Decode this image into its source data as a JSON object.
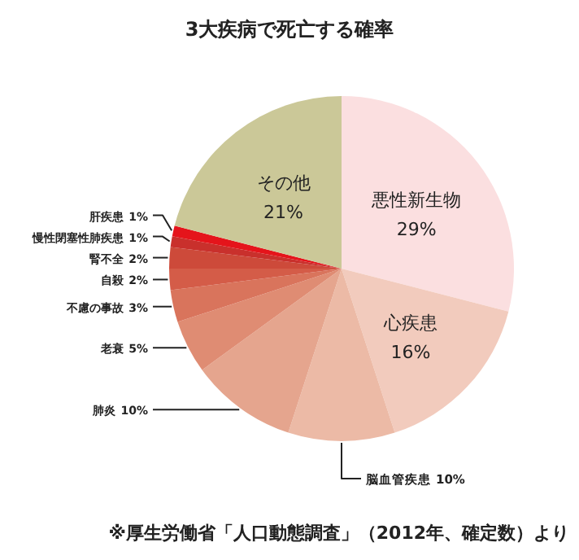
{
  "chart_data": {
    "type": "pie",
    "title": "3大疾病で死亡する確率",
    "categories": [
      "悪性新生物",
      "心疾患",
      "脳血管疾患",
      "肺炎",
      "老衰",
      "不慮の事故",
      "自殺",
      "腎不全",
      "慢性閉塞性肺疾患",
      "肝疾患",
      "その他"
    ],
    "values": [
      29,
      16,
      10,
      10,
      5,
      3,
      2,
      2,
      1,
      1,
      21
    ],
    "colors": [
      "#fbdfe0",
      "#f2cbbd",
      "#ecbaa6",
      "#e5a58e",
      "#df8c73",
      "#d9745c",
      "#d45c48",
      "#cd4a3a",
      "#c9302c",
      "#e5141b",
      "#cbc898"
    ],
    "value_labels": [
      "29%",
      "16%",
      "10%",
      "10%",
      "5%",
      "3%",
      "2%",
      "2%",
      "1%",
      "1%",
      "21%"
    ],
    "annotations": [
      "※厚生労働省「人口動態調査」（2012年、確定数）より"
    ]
  }
}
